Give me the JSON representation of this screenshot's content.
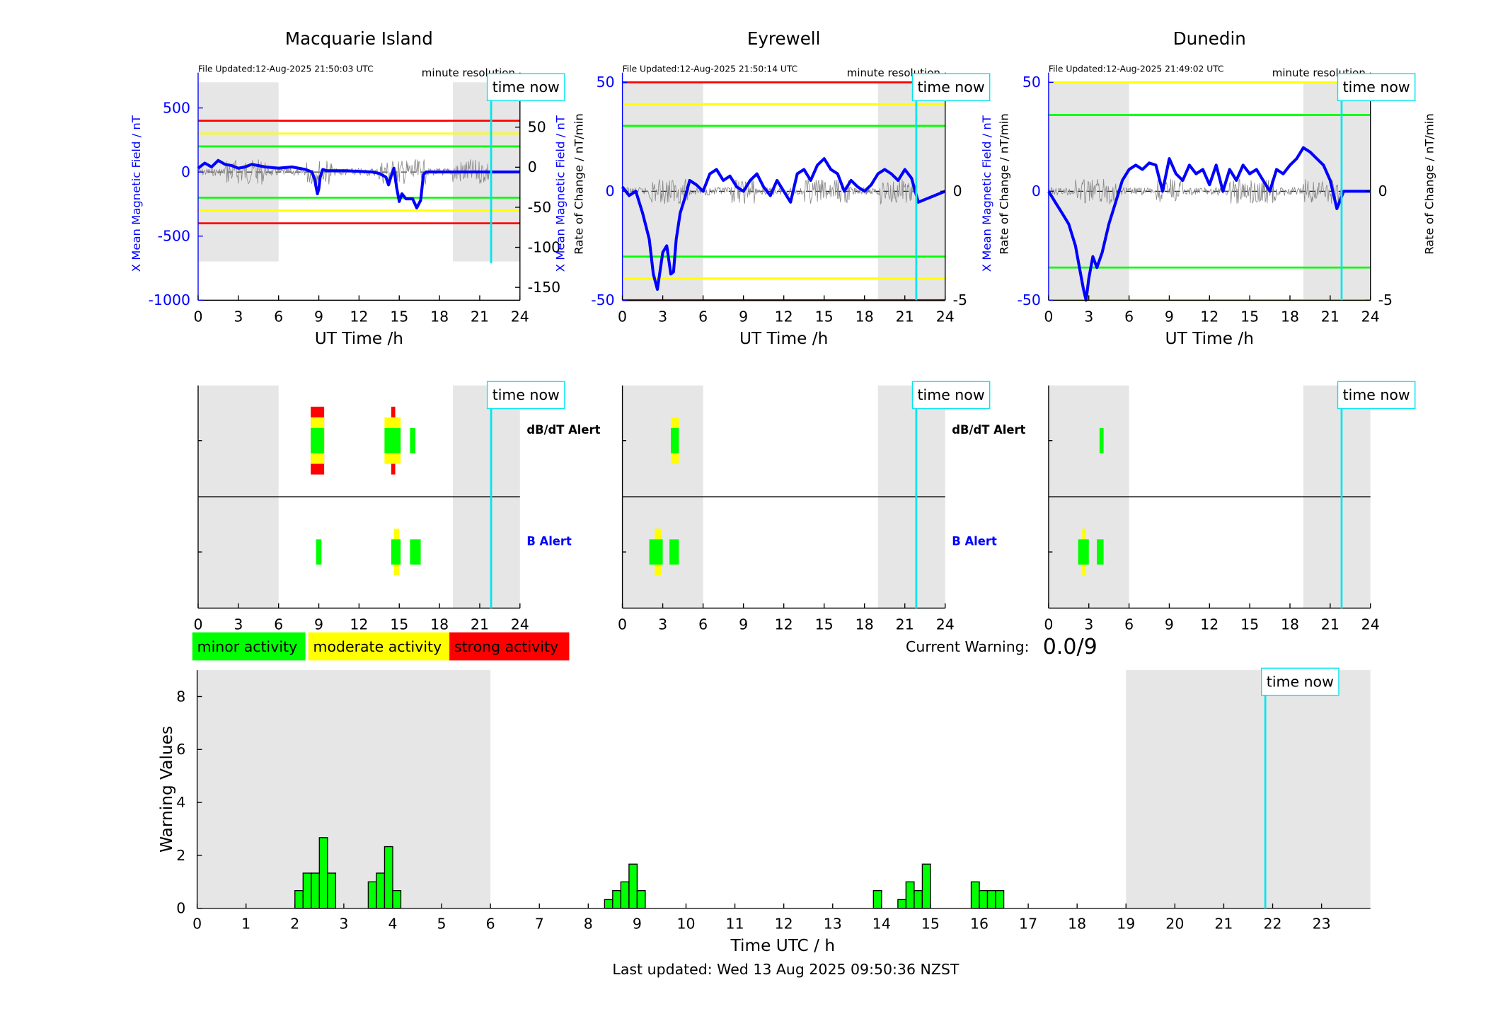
{
  "colors": {
    "shade": "#e6e6e6",
    "blue": "#0000ff",
    "red": "#ff0000",
    "yellow": "#ffff00",
    "green": "#00ff00",
    "cyan": "#00e5ee",
    "gray": "#888888",
    "black": "#000000"
  },
  "common": {
    "time_now_label": "time now",
    "minute_resolution": "minute resolution",
    "ut_axis_label": "UT Time /h",
    "left_ylabel": "X Mean Magnetic Field / nT",
    "right_ylabel": "Rate of Change / nT/min",
    "dbdt_label": "dB/dT Alert",
    "b_label": "B Alert",
    "now_hour": 21.85
  },
  "legend": {
    "minor": "minor activity",
    "moderate": "moderate activity",
    "strong": "strong activity"
  },
  "warning": {
    "label": "Current Warning:",
    "value": "0.0/9"
  },
  "footer": {
    "last_updated": "Last updated: Wed 13 Aug 2025 09:50:36 NZST"
  },
  "chart_data": [
    {
      "type": "line",
      "title": "Macquarie Island",
      "file_updated": "File Updated:12-Aug-2025 21:50:03 UTC",
      "xlabel": "UT Time /h",
      "xlim": [
        0,
        24
      ],
      "xticks": [
        0,
        3,
        6,
        9,
        12,
        15,
        18,
        21,
        24
      ],
      "ylim": [
        -1000,
        700
      ],
      "yticks": [
        500,
        0,
        -500,
        -1000
      ],
      "y2lim": [
        -166,
        106
      ],
      "y2ticks": [
        100,
        50,
        0,
        -50,
        -100,
        -150
      ],
      "shaded_hours": [
        [
          0,
          6
        ],
        [
          19,
          24
        ]
      ],
      "thresholds": {
        "red": 400,
        "yellow": 300,
        "green": 200
      },
      "series": {
        "x": [
          0,
          0.5,
          1,
          1.5,
          2,
          2.5,
          3,
          3.5,
          4,
          5,
          6,
          7,
          8,
          8.5,
          8.7,
          8.8,
          8.9,
          9.0,
          9.1,
          9.3,
          9.6,
          10,
          11,
          12,
          13,
          13.5,
          14,
          14.2,
          14.4,
          14.6,
          14.8,
          15,
          15.2,
          15.5,
          16,
          16.3,
          16.6,
          16.8,
          17,
          18,
          19,
          20,
          21,
          21.85,
          24
        ],
        "y": [
          30,
          70,
          40,
          90,
          60,
          50,
          30,
          40,
          60,
          40,
          30,
          40,
          20,
          0,
          -60,
          -120,
          -170,
          -130,
          -40,
          20,
          10,
          10,
          10,
          5,
          0,
          -10,
          -40,
          -100,
          -30,
          30,
          -120,
          -230,
          -170,
          -210,
          -210,
          -280,
          -220,
          -20,
          0,
          0,
          0,
          0,
          0,
          0,
          0
        ]
      }
    },
    {
      "type": "line",
      "title": "Eyrewell",
      "file_updated": "File Updated:12-Aug-2025 21:50:14 UTC",
      "xlabel": "UT Time /h",
      "xlim": [
        0,
        24
      ],
      "xticks": [
        0,
        3,
        6,
        9,
        12,
        15,
        18,
        21,
        24
      ],
      "ylim": [
        -50,
        50
      ],
      "yticks": [
        50,
        0,
        -50
      ],
      "y2lim": [
        -5,
        5
      ],
      "y2ticks": [
        5,
        0,
        -5
      ],
      "shaded_hours": [
        [
          0,
          6
        ],
        [
          19,
          24
        ]
      ],
      "thresholds": {
        "red": 50,
        "yellow": 40,
        "green": 30
      },
      "series": {
        "x": [
          0,
          0.5,
          1,
          1.5,
          2,
          2.3,
          2.6,
          3,
          3.3,
          3.6,
          3.8,
          4,
          4.3,
          4.7,
          5,
          5.5,
          6,
          6.5,
          7,
          7.5,
          8,
          8.5,
          9,
          9.5,
          10,
          10.5,
          11,
          11.5,
          12,
          12.5,
          13,
          13.5,
          14,
          14.5,
          15,
          15.5,
          16,
          16.5,
          17,
          17.5,
          18,
          18.5,
          19,
          19.5,
          20,
          20.5,
          21,
          21.5,
          22,
          24
        ],
        "y": [
          2,
          -2,
          0,
          -10,
          -22,
          -38,
          -45,
          -28,
          -25,
          -38,
          -37,
          -22,
          -10,
          -2,
          5,
          3,
          0,
          8,
          10,
          5,
          7,
          2,
          0,
          5,
          8,
          2,
          -2,
          5,
          0,
          -5,
          8,
          10,
          5,
          12,
          15,
          10,
          8,
          0,
          5,
          2,
          0,
          3,
          8,
          10,
          8,
          5,
          10,
          6,
          -5,
          0
        ]
      }
    },
    {
      "type": "line",
      "title": "Dunedin",
      "file_updated": "File Updated:12-Aug-2025 21:49:02 UTC",
      "xlabel": "UT Time /h",
      "xlim": [
        0,
        24
      ],
      "xticks": [
        0,
        3,
        6,
        9,
        12,
        15,
        18,
        21,
        24
      ],
      "ylim": [
        -50,
        50
      ],
      "yticks": [
        50,
        0,
        -50
      ],
      "y2lim": [
        -5,
        5
      ],
      "y2ticks": [
        5,
        0,
        -5
      ],
      "shaded_hours": [
        [
          0,
          6
        ],
        [
          19,
          24
        ]
      ],
      "thresholds": {
        "yellow": 50,
        "green": 35
      },
      "series": {
        "x": [
          0,
          0.5,
          1,
          1.5,
          2,
          2.3,
          2.6,
          2.8,
          3,
          3.3,
          3.6,
          4,
          4.5,
          5,
          5.5,
          6,
          6.5,
          7,
          7.5,
          8,
          8.5,
          9,
          9.5,
          10,
          10.5,
          11,
          11.5,
          12,
          12.5,
          13,
          13.5,
          14,
          14.5,
          15,
          15.5,
          16,
          16.5,
          17,
          17.5,
          18,
          18.5,
          19,
          19.5,
          20,
          20.5,
          21,
          21.5,
          22,
          24
        ],
        "y": [
          0,
          -5,
          -10,
          -15,
          -25,
          -35,
          -45,
          -50,
          -40,
          -30,
          -35,
          -28,
          -15,
          -5,
          5,
          10,
          12,
          10,
          13,
          12,
          0,
          15,
          8,
          5,
          12,
          8,
          10,
          3,
          12,
          0,
          10,
          5,
          12,
          8,
          10,
          5,
          0,
          10,
          8,
          12,
          15,
          20,
          18,
          15,
          12,
          5,
          -8,
          0,
          0
        ]
      }
    },
    {
      "type": "heatmap",
      "title": "Macquarie Island alerts",
      "rows": [
        "dB/dT Alert",
        "B Alert"
      ],
      "xlim": [
        0,
        24
      ],
      "xticks": [
        0,
        3,
        6,
        9,
        12,
        15,
        18,
        21,
        24
      ],
      "shaded_hours": [
        [
          0,
          6
        ],
        [
          19,
          24
        ]
      ],
      "dbdt_blocks": [
        {
          "x0": 8.4,
          "x1": 9.4,
          "level": "strong"
        },
        {
          "x0": 8.4,
          "x1": 9.4,
          "level": "moderate"
        },
        {
          "x0": 8.4,
          "x1": 9.4,
          "level": "minor"
        },
        {
          "x0": 13.9,
          "x1": 14.3,
          "level": "moderate"
        },
        {
          "x0": 13.9,
          "x1": 14.3,
          "level": "minor"
        },
        {
          "x0": 14.4,
          "x1": 14.7,
          "level": "strong"
        },
        {
          "x0": 14.3,
          "x1": 15.1,
          "level": "moderate"
        },
        {
          "x0": 14.3,
          "x1": 15.1,
          "level": "minor"
        },
        {
          "x0": 15.8,
          "x1": 16.2,
          "level": "minor"
        }
      ],
      "b_blocks": [
        {
          "x0": 8.8,
          "x1": 9.2,
          "level": "minor"
        },
        {
          "x0": 14.6,
          "x1": 15.0,
          "level": "moderate"
        },
        {
          "x0": 14.4,
          "x1": 15.1,
          "level": "minor"
        },
        {
          "x0": 15.8,
          "x1": 16.6,
          "level": "minor"
        }
      ]
    },
    {
      "type": "heatmap",
      "title": "Eyrewell alerts",
      "rows": [
        "dB/dT Alert",
        "B Alert"
      ],
      "xlim": [
        0,
        24
      ],
      "xticks": [
        0,
        3,
        6,
        9,
        12,
        15,
        18,
        21,
        24
      ],
      "shaded_hours": [
        [
          0,
          6
        ],
        [
          19,
          24
        ]
      ],
      "dbdt_blocks": [
        {
          "x0": 3.6,
          "x1": 4.2,
          "level": "moderate"
        },
        {
          "x0": 3.6,
          "x1": 4.2,
          "level": "minor"
        }
      ],
      "b_blocks": [
        {
          "x0": 2.4,
          "x1": 2.9,
          "level": "moderate"
        },
        {
          "x0": 2.0,
          "x1": 3.0,
          "level": "minor"
        },
        {
          "x0": 3.5,
          "x1": 4.2,
          "level": "minor"
        }
      ]
    },
    {
      "type": "heatmap",
      "title": "Dunedin alerts",
      "rows": [
        "dB/dT Alert",
        "B Alert"
      ],
      "xlim": [
        0,
        24
      ],
      "xticks": [
        0,
        3,
        6,
        9,
        12,
        15,
        18,
        21,
        24
      ],
      "shaded_hours": [
        [
          0,
          6
        ],
        [
          19,
          24
        ]
      ],
      "dbdt_blocks": [
        {
          "x0": 3.8,
          "x1": 4.1,
          "level": "minor"
        }
      ],
      "b_blocks": [
        {
          "x0": 2.5,
          "x1": 2.8,
          "level": "moderate"
        },
        {
          "x0": 2.2,
          "x1": 3.0,
          "level": "minor"
        },
        {
          "x0": 3.6,
          "x1": 4.1,
          "level": "minor"
        }
      ]
    },
    {
      "type": "bar",
      "title": "",
      "xlabel": "Time UTC / h",
      "ylabel": "Warning Values",
      "xlim": [
        0,
        24
      ],
      "xticks": [
        0,
        1,
        2,
        3,
        4,
        5,
        6,
        7,
        8,
        9,
        10,
        11,
        12,
        13,
        14,
        15,
        16,
        17,
        18,
        19,
        20,
        21,
        22,
        23
      ],
      "ylim": [
        0,
        9
      ],
      "yticks": [
        0,
        2,
        4,
        6,
        8
      ],
      "shaded_hours": [
        [
          0,
          6
        ],
        [
          19,
          24
        ]
      ],
      "bin_width": 0.1667,
      "x": [
        2.083,
        2.25,
        2.417,
        2.583,
        2.75,
        3.583,
        3.75,
        3.917,
        4.083,
        8.417,
        8.583,
        8.75,
        8.917,
        9.083,
        13.917,
        14.417,
        14.583,
        14.75,
        14.917,
        15.917,
        16.083,
        16.25,
        16.417
      ],
      "values": [
        0.67,
        1.33,
        1.33,
        2.67,
        1.33,
        1.0,
        1.33,
        2.33,
        0.67,
        0.33,
        0.67,
        1.0,
        1.67,
        0.67,
        0.67,
        0.33,
        1.0,
        0.67,
        1.67,
        1.0,
        0.67,
        0.67,
        0.67
      ]
    }
  ]
}
